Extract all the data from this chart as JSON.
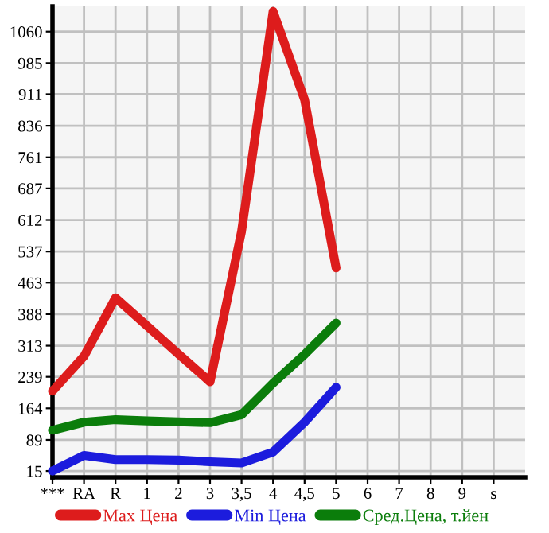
{
  "chart_data": {
    "type": "line",
    "categories": [
      "***",
      "RA",
      "R",
      "1",
      "2",
      "3",
      "3,5",
      "4",
      "4,5",
      "5",
      "6",
      "7",
      "8",
      "9",
      "s"
    ],
    "ylim": [
      0,
      1120
    ],
    "yticks": [
      15,
      89,
      164,
      239,
      313,
      388,
      463,
      537,
      612,
      687,
      761,
      836,
      911,
      985,
      1060
    ],
    "grid": true,
    "legend": "bottom",
    "marker": "none",
    "line_style": "solid",
    "series": [
      {
        "name": "Max Цена",
        "color": "#dd1c1c",
        "values": [
          205,
          288,
          427,
          360,
          293,
          227,
          585,
          1108,
          898,
          498,
          null,
          null,
          null,
          null,
          null
        ]
      },
      {
        "name": "Min Цена",
        "color": "#1c1cdd",
        "values": [
          15,
          52,
          42,
          42,
          41,
          37,
          34,
          60,
          131,
          214,
          null,
          null,
          null,
          null,
          null
        ]
      },
      {
        "name": "Сред.Цена, т.йен",
        "color": "#0b7d0b",
        "values": [
          112,
          131,
          137,
          134,
          132,
          130,
          149,
          224,
          292,
          367,
          null,
          null,
          null,
          null,
          null
        ]
      }
    ]
  }
}
